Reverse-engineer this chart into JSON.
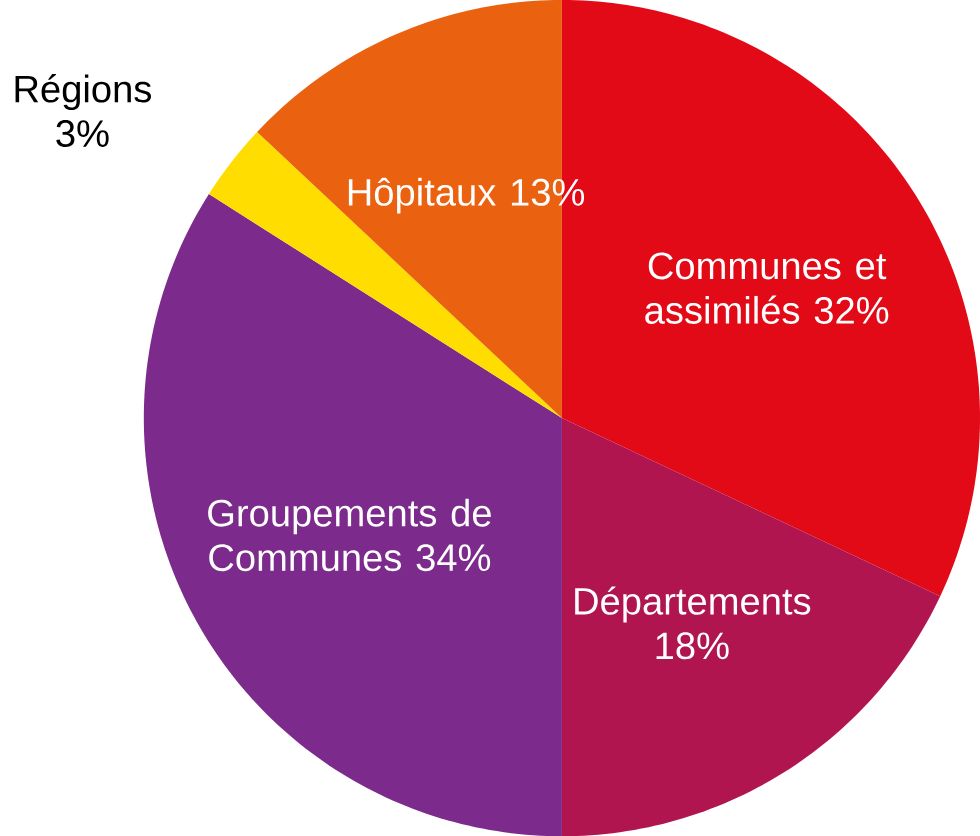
{
  "chart_data": {
    "type": "pie",
    "categories": [
      "Communes et assimilés",
      "Départements",
      "Groupements de Communes",
      "Régions",
      "Hôpitaux"
    ],
    "values": [
      32,
      18,
      34,
      3,
      13
    ],
    "value_labels": [
      "32%",
      "18%",
      "34%",
      "3%",
      "13%"
    ],
    "colors": [
      "#e30a17",
      "#b0154f",
      "#7c2b8c",
      "#ffdd00",
      "#ea6110"
    ]
  }
}
